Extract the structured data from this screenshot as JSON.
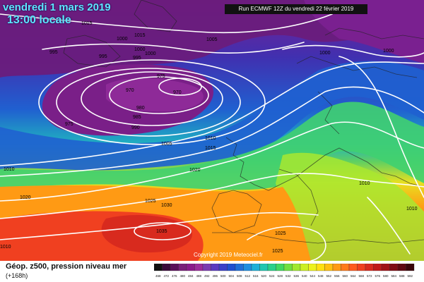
{
  "header": {
    "date": "vendredi 1 mars 2019",
    "local_time": "13:00 locale",
    "run_info": "Run ECMWF 12Z du vendredi 22 février 2019"
  },
  "map": {
    "copyright": "Copyright 2019 Meteociel.fr",
    "isobar_labels": [
      "1015",
      "995",
      "995",
      "1000",
      "1015",
      "1000",
      "995",
      "1000",
      "1005",
      "975",
      "970",
      "970",
      "980",
      "985",
      "990",
      "975",
      "1005",
      "1010",
      "1015",
      "1010",
      "1020",
      "1000",
      "1000",
      "1010",
      "1025",
      "1030",
      "1035",
      "1025",
      "1020",
      "1010",
      "1010",
      "1025"
    ]
  },
  "footer": {
    "title": "Géop. z500, pression niveau mer",
    "subtitle": "(+168h)"
  },
  "legend": {
    "colors": [
      "#111111",
      "#3a0a3a",
      "#5a0f5a",
      "#7a1f7a",
      "#8a1a8a",
      "#9b2b9b",
      "#7b3bb0",
      "#5a3ac0",
      "#3a40c8",
      "#2050d0",
      "#1f6fd8",
      "#1e8fe0",
      "#1fb0d8",
      "#21c6b0",
      "#2ad08a",
      "#40d860",
      "#70e040",
      "#a0e830",
      "#ccef22",
      "#eef21a",
      "#ffe010",
      "#ffc010",
      "#ff9a14",
      "#ff7a1c",
      "#ff5a20",
      "#f04020",
      "#d82a1e",
      "#c01a1a",
      "#a01218",
      "#800c14",
      "#600810",
      "#3a050a"
    ],
    "labels": [
      "468",
      "472",
      "476",
      "480",
      "484",
      "488",
      "492",
      "496",
      "500",
      "504",
      "508",
      "512",
      "516",
      "520",
      "524",
      "528",
      "532",
      "536",
      "540",
      "544",
      "548",
      "552",
      "556",
      "560",
      "564",
      "568",
      "572",
      "576",
      "580",
      "584",
      "588",
      "592"
    ]
  }
}
